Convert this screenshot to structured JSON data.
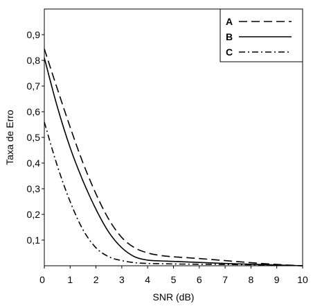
{
  "chart_data": {
    "type": "line",
    "title": "",
    "xlabel": "SNR (dB)",
    "ylabel": "Taxa de Erro",
    "xlim": [
      0,
      10
    ],
    "ylim": [
      0,
      1
    ],
    "xticks": [
      0,
      1,
      2,
      3,
      4,
      5,
      6,
      7,
      8,
      9,
      10
    ],
    "xtick_labels": [
      "0",
      "1",
      "2",
      "3",
      "4",
      "5",
      "6",
      "7",
      "8",
      "9",
      "10"
    ],
    "yticks": [
      0.1,
      0.2,
      0.3,
      0.4,
      0.5,
      0.6,
      0.7,
      0.8,
      0.9
    ],
    "ytick_labels": [
      "0,1",
      "0,2",
      "0,3",
      "0,4",
      "0,5",
      "0,6",
      "0,7",
      "0,8",
      "0,9"
    ],
    "grid": false,
    "legend_position": "top-right",
    "line_color": "#000000",
    "series": [
      {
        "name": "A",
        "style": "dashed",
        "x": [
          0,
          0.5,
          1,
          1.5,
          2,
          2.5,
          3,
          3.5,
          4,
          4.5,
          5,
          6,
          7,
          8,
          9,
          10
        ],
        "y": [
          0.845,
          0.69,
          0.54,
          0.4,
          0.28,
          0.18,
          0.11,
          0.07,
          0.05,
          0.04,
          0.035,
          0.028,
          0.02,
          0.012,
          0.005,
          0.0
        ]
      },
      {
        "name": "B",
        "style": "solid",
        "x": [
          0,
          0.5,
          1,
          1.5,
          2,
          2.5,
          3,
          3.5,
          4,
          4.5,
          5,
          6,
          7,
          8,
          9,
          10
        ],
        "y": [
          0.81,
          0.62,
          0.46,
          0.33,
          0.22,
          0.13,
          0.07,
          0.035,
          0.022,
          0.019,
          0.017,
          0.013,
          0.009,
          0.006,
          0.003,
          0.0
        ]
      },
      {
        "name": "C",
        "style": "dashdot",
        "x": [
          0,
          0.5,
          1,
          1.5,
          2,
          2.5,
          3,
          3.5,
          4,
          4.5,
          5,
          6,
          7,
          8,
          9,
          10
        ],
        "y": [
          0.56,
          0.39,
          0.25,
          0.14,
          0.07,
          0.035,
          0.02,
          0.012,
          0.009,
          0.008,
          0.007,
          0.006,
          0.005,
          0.004,
          0.002,
          0.0
        ]
      }
    ]
  }
}
